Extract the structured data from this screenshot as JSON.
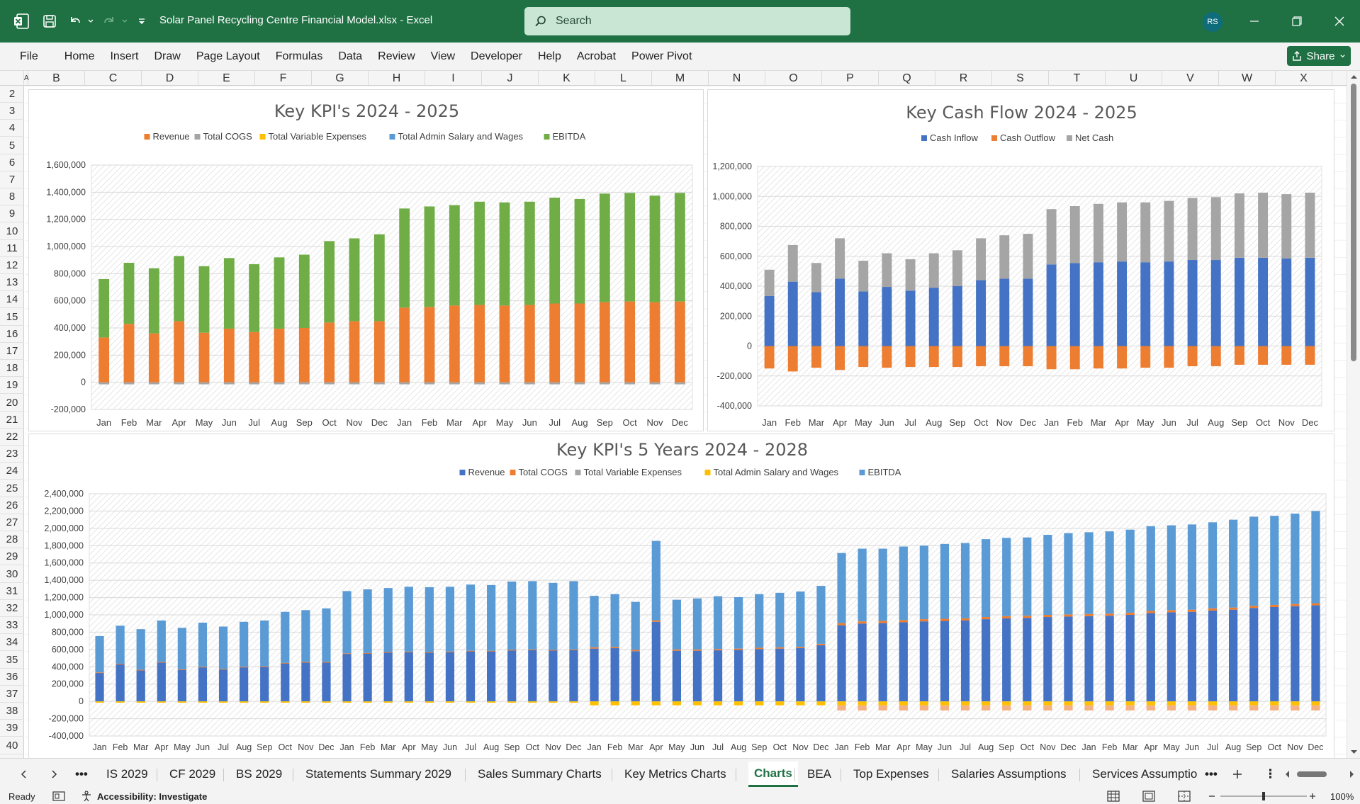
{
  "window": {
    "doc_title": "Solar Panel Recycling Centre Financial Model.xlsx  -  Excel",
    "search_label": "Search",
    "avatar_initials": "RS",
    "accent": "#1f7144"
  },
  "ribbon": {
    "tabs": [
      "File",
      "Home",
      "Insert",
      "Draw",
      "Page Layout",
      "Formulas",
      "Data",
      "Review",
      "View",
      "Developer",
      "Help",
      "Acrobat",
      "Power Pivot"
    ],
    "share_label": "Share"
  },
  "grid": {
    "columns": [
      "A",
      "B",
      "C",
      "D",
      "E",
      "F",
      "G",
      "H",
      "I",
      "J",
      "K",
      "L",
      "M",
      "N",
      "O",
      "P",
      "Q",
      "R",
      "S",
      "T",
      "U",
      "V",
      "W",
      "X"
    ],
    "rows": [
      2,
      3,
      4,
      5,
      6,
      7,
      8,
      9,
      10,
      11,
      12,
      13,
      14,
      15,
      16,
      17,
      18,
      19,
      20,
      21,
      22,
      23,
      24,
      25,
      26,
      27,
      28,
      29,
      30,
      31,
      32,
      33,
      34,
      35,
      36,
      37,
      38,
      39,
      40
    ]
  },
  "chart_data": [
    {
      "type": "bar",
      "stacked": true,
      "title": "Key KPI's 2024 - 2025",
      "legend": [
        "Revenue",
        "Total COGS",
        "Total Variable Expenses",
        "Total Admin Salary and Wages",
        "EBITDA"
      ],
      "legend_colors": [
        "#ed7d31",
        "#a5a5a5",
        "#ffc000",
        "#5b9bd5",
        "#70ad47"
      ],
      "categories": [
        "Jan",
        "Feb",
        "Mar",
        "Apr",
        "May",
        "Jun",
        "Jul",
        "Aug",
        "Sep",
        "Oct",
        "Nov",
        "Dec",
        "Jan",
        "Feb",
        "Mar",
        "Apr",
        "May",
        "Jun",
        "Jul",
        "Aug",
        "Sep",
        "Oct",
        "Nov",
        "Dec"
      ],
      "yticks": [
        "1,600,000",
        "1,400,000",
        "1,200,000",
        "1,000,000",
        "800,000",
        "600,000",
        "400,000",
        "200,000",
        "0",
        "-200,000"
      ],
      "ylim": [
        -200000,
        1600000
      ],
      "series": [
        {
          "name": "Revenue",
          "color": "#ed7d31",
          "values": [
            330000,
            430000,
            360000,
            450000,
            365000,
            395000,
            370000,
            395000,
            400000,
            440000,
            450000,
            450000,
            550000,
            555000,
            565000,
            570000,
            565000,
            570000,
            580000,
            580000,
            590000,
            595000,
            590000,
            595000
          ]
        },
        {
          "name": "EBITDA",
          "color": "#70ad47",
          "values": [
            430000,
            450000,
            480000,
            480000,
            490000,
            520000,
            500000,
            525000,
            540000,
            600000,
            610000,
            640000,
            730000,
            740000,
            740000,
            760000,
            760000,
            760000,
            780000,
            770000,
            800000,
            800000,
            785000,
            800000
          ]
        },
        {
          "name": "Total COGS",
          "color": "#a5a5a5",
          "values": [
            -15000,
            -15000,
            -15000,
            -15000,
            -15000,
            -15000,
            -15000,
            -15000,
            -15000,
            -15000,
            -15000,
            -15000,
            -15000,
            -15000,
            -15000,
            -15000,
            -15000,
            -15000,
            -15000,
            -15000,
            -15000,
            -15000,
            -15000,
            -15000
          ]
        }
      ]
    },
    {
      "type": "bar",
      "stacked": true,
      "title": "Key Cash Flow 2024 - 2025",
      "legend": [
        "Cash Inflow",
        "Cash Outflow",
        "Net Cash"
      ],
      "legend_colors": [
        "#4472c4",
        "#ed7d31",
        "#a5a5a5"
      ],
      "categories": [
        "Jan",
        "Feb",
        "Mar",
        "Apr",
        "May",
        "Jun",
        "Jul",
        "Aug",
        "Sep",
        "Oct",
        "Nov",
        "Dec",
        "Jan",
        "Feb",
        "Mar",
        "Apr",
        "May",
        "Jun",
        "Jul",
        "Aug",
        "Sep",
        "Oct",
        "Nov",
        "Dec"
      ],
      "yticks": [
        "1,200,000",
        "1,000,000",
        "800,000",
        "600,000",
        "400,000",
        "200,000",
        "0",
        "-200,000",
        "-400,000"
      ],
      "ylim": [
        -400000,
        1200000
      ],
      "series": [
        {
          "name": "Cash Inflow",
          "color": "#4472c4",
          "values": [
            335000,
            430000,
            360000,
            450000,
            365000,
            395000,
            370000,
            390000,
            400000,
            440000,
            450000,
            450000,
            545000,
            555000,
            560000,
            565000,
            560000,
            565000,
            575000,
            575000,
            590000,
            590000,
            585000,
            590000
          ]
        },
        {
          "name": "Net Cash",
          "color": "#a5a5a5",
          "values": [
            175000,
            245000,
            195000,
            270000,
            205000,
            225000,
            210000,
            230000,
            240000,
            280000,
            290000,
            300000,
            370000,
            380000,
            390000,
            395000,
            400000,
            405000,
            415000,
            420000,
            430000,
            435000,
            430000,
            435000
          ]
        },
        {
          "name": "Cash Outflow",
          "color": "#ed7d31",
          "values": [
            -150000,
            -170000,
            -145000,
            -160000,
            -140000,
            -145000,
            -140000,
            -140000,
            -140000,
            -135000,
            -135000,
            -135000,
            -155000,
            -155000,
            -150000,
            -150000,
            -145000,
            -145000,
            -135000,
            -135000,
            -125000,
            -125000,
            -125000,
            -125000
          ]
        }
      ]
    },
    {
      "type": "bar",
      "stacked": true,
      "title": "Key KPI's 5 Years 2024 - 2028",
      "legend": [
        "Revenue",
        "Total COGS",
        "Total Variable Expenses",
        "Total Admin Salary and Wages",
        "EBITDA"
      ],
      "legend_colors": [
        "#4472c4",
        "#ed7d31",
        "#a5a5a5",
        "#ffc000",
        "#5b9bd5"
      ],
      "categories": [
        "Jan",
        "Feb",
        "Mar",
        "Apr",
        "May",
        "Jun",
        "Jul",
        "Aug",
        "Sep",
        "Oct",
        "Nov",
        "Dec",
        "Jan",
        "Feb",
        "Mar",
        "Apr",
        "May",
        "Jun",
        "Jul",
        "Aug",
        "Sep",
        "Oct",
        "Nov",
        "Dec",
        "Jan",
        "Feb",
        "Mar",
        "Apr",
        "May",
        "Jun",
        "Jul",
        "Aug",
        "Sep",
        "Oct",
        "Nov",
        "Dec",
        "Jan",
        "Feb",
        "Mar",
        "Apr",
        "May",
        "Jun",
        "Jul",
        "Aug",
        "Sep",
        "Oct",
        "Nov",
        "Dec",
        "Jan",
        "Feb",
        "Mar",
        "Apr",
        "May",
        "Jun",
        "Jul",
        "Aug",
        "Sep",
        "Oct",
        "Nov",
        "Dec"
      ],
      "yticks": [
        "2,400,000",
        "2,200,000",
        "2,000,000",
        "1,800,000",
        "1,600,000",
        "1,400,000",
        "1,200,000",
        "1,000,000",
        "800,000",
        "600,000",
        "400,000",
        "200,000",
        "0",
        "-200,000",
        "-400,000"
      ],
      "ylim": [
        -400000,
        2400000
      ],
      "series": [
        {
          "name": "Revenue",
          "color": "#4472c4",
          "values": [
            330000,
            430000,
            360000,
            450000,
            365000,
            395000,
            370000,
            395000,
            400000,
            440000,
            450000,
            450000,
            550000,
            555000,
            565000,
            570000,
            565000,
            570000,
            580000,
            580000,
            590000,
            595000,
            590000,
            595000,
            610000,
            615000,
            580000,
            920000,
            585000,
            585000,
            590000,
            595000,
            605000,
            610000,
            615000,
            650000,
            880000,
            900000,
            905000,
            915000,
            925000,
            930000,
            935000,
            950000,
            960000,
            965000,
            975000,
            980000,
            985000,
            990000,
            1000000,
            1020000,
            1030000,
            1035000,
            1050000,
            1060000,
            1080000,
            1090000,
            1100000,
            1110000
          ]
        },
        {
          "name": "Total COGS",
          "color": "#ed7d31",
          "values": [
            5000,
            5000,
            5000,
            5000,
            5000,
            5000,
            5000,
            5000,
            5000,
            5000,
            5000,
            5000,
            5000,
            5000,
            5000,
            5000,
            5000,
            5000,
            5000,
            5000,
            5000,
            5000,
            5000,
            5000,
            15000,
            15000,
            15000,
            15000,
            15000,
            15000,
            15000,
            15000,
            15000,
            15000,
            15000,
            15000,
            25000,
            25000,
            25000,
            25000,
            25000,
            25000,
            25000,
            25000,
            25000,
            25000,
            25000,
            25000,
            25000,
            25000,
            25000,
            25000,
            25000,
            25000,
            25000,
            25000,
            25000,
            25000,
            25000,
            25000
          ]
        },
        {
          "name": "EBITDA",
          "color": "#5b9bd5",
          "values": [
            420000,
            440000,
            470000,
            480000,
            480000,
            510000,
            490000,
            520000,
            530000,
            590000,
            600000,
            620000,
            720000,
            735000,
            740000,
            750000,
            750000,
            750000,
            765000,
            760000,
            790000,
            790000,
            775000,
            790000,
            595000,
            610000,
            555000,
            920000,
            575000,
            590000,
            610000,
            595000,
            620000,
            630000,
            640000,
            670000,
            810000,
            840000,
            835000,
            850000,
            850000,
            865000,
            870000,
            900000,
            905000,
            905000,
            925000,
            940000,
            945000,
            950000,
            960000,
            980000,
            980000,
            985000,
            995000,
            1015000,
            1030000,
            1030000,
            1045000,
            1065000
          ]
        },
        {
          "name": "Total Variable Expenses",
          "color": "#ffc000",
          "values": [
            -15000,
            -15000,
            -15000,
            -15000,
            -15000,
            -15000,
            -15000,
            -15000,
            -15000,
            -15000,
            -15000,
            -15000,
            -15000,
            -15000,
            -15000,
            -15000,
            -15000,
            -15000,
            -15000,
            -15000,
            -15000,
            -15000,
            -15000,
            -15000,
            -45000,
            -45000,
            -45000,
            -45000,
            -45000,
            -45000,
            -45000,
            -45000,
            -45000,
            -45000,
            -45000,
            -45000,
            -45000,
            -45000,
            -45000,
            -45000,
            -45000,
            -45000,
            -45000,
            -45000,
            -45000,
            -45000,
            -45000,
            -45000,
            -45000,
            -45000,
            -45000,
            -45000,
            -45000,
            -45000,
            -45000,
            -45000,
            -45000,
            -45000,
            -45000,
            -45000
          ]
        },
        {
          "name": "Total Admin Salary and Wages",
          "color": "#f4b183",
          "values": [
            0,
            0,
            0,
            0,
            0,
            0,
            0,
            0,
            0,
            0,
            0,
            0,
            0,
            0,
            0,
            0,
            0,
            0,
            0,
            0,
            0,
            0,
            0,
            0,
            0,
            0,
            0,
            0,
            0,
            0,
            0,
            0,
            0,
            0,
            0,
            0,
            -60000,
            -60000,
            -60000,
            -60000,
            -60000,
            -60000,
            -60000,
            -60000,
            -60000,
            -60000,
            -60000,
            -60000,
            -60000,
            -60000,
            -60000,
            -60000,
            -60000,
            -60000,
            -60000,
            -60000,
            -60000,
            -60000,
            -60000,
            -60000
          ]
        }
      ]
    }
  ],
  "sheet_tabs": {
    "items": [
      "IS 2029",
      "CF 2029",
      "BS 2029",
      "Statements Summary 2029",
      "Sales Summary Charts",
      "Key Metrics Charts",
      "Charts",
      "BEA",
      "Top Expenses",
      "Salaries Assumptions",
      "Services Assumptio"
    ],
    "active": "Charts"
  },
  "statusbar": {
    "ready": "Ready",
    "accessibility": "Accessibility: Investigate",
    "zoom": "100%"
  }
}
